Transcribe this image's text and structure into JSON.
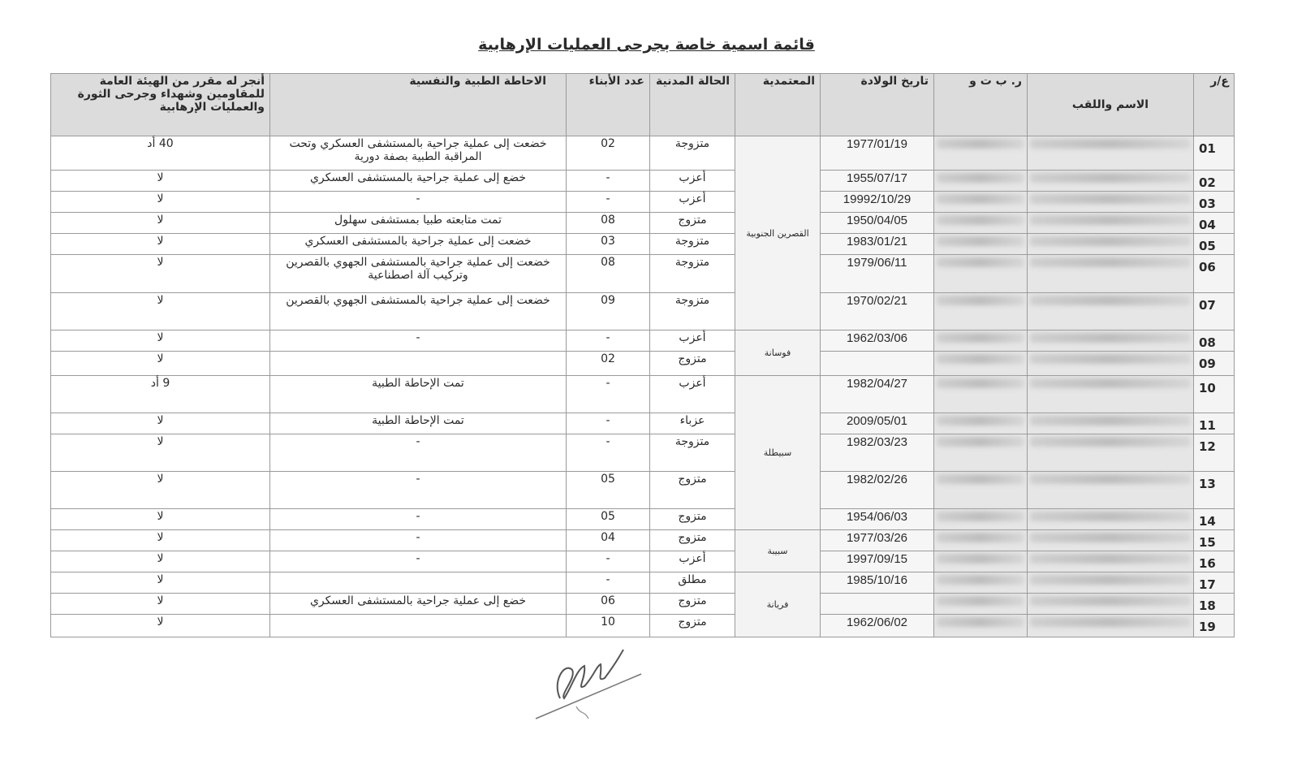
{
  "title": "قائمة اسمية خاصة بجرحى العمليات الإرهابية",
  "headers": {
    "num": "ع/ر",
    "name": "الاسم واللقب",
    "id": "ر. ب ت و",
    "dob": "تاريخ الولادة",
    "delegation": "المعتمدية",
    "civil": "الحالة المدنية",
    "children": "عدد الأبناء",
    "medical": "الاحاطة الطبية والنفسية",
    "grant": "أنجر له مقرر من الهيئة العامة للمقاومين وشهداء وجرحى الثورة والعمليات الإرهابية"
  },
  "delegations": [
    {
      "name": "القصرين الجنوبية",
      "rows": 7
    },
    {
      "name": "فوسانة",
      "rows": 2
    },
    {
      "name": "سبيطلة",
      "rows": 5
    },
    {
      "name": "سبيبة",
      "rows": 2
    },
    {
      "name": "فريانة",
      "rows": 3
    }
  ],
  "rows": [
    {
      "num": "01",
      "dob": "1977/01/19",
      "civil": "متزوجة",
      "children": "02",
      "medical": "خضعت إلى عملية جراحية بالمستشفى العسكري وتحت المراقبة الطبية بصفة دورية",
      "grant": "40 أد"
    },
    {
      "num": "02",
      "dob": "1955/07/17",
      "civil": "أعزب",
      "children": "-",
      "medical": "خضع إلى عملية جراحية بالمستشفى العسكري",
      "grant": "لا"
    },
    {
      "num": "03",
      "dob": "19992/10/29",
      "civil": "أعزب",
      "children": "-",
      "medical": "-",
      "grant": "لا"
    },
    {
      "num": "04",
      "dob": "1950/04/05",
      "civil": "متزوج",
      "children": "08",
      "medical": "تمت متابعته طبيا بمستشفى سهلول",
      "grant": "لا"
    },
    {
      "num": "05",
      "dob": "1983/01/21",
      "civil": "متزوجة",
      "children": "03",
      "medical": "خضعت إلى عملية جراحية بالمستشفى العسكري",
      "grant": "لا"
    },
    {
      "num": "06",
      "dob": "1979/06/11",
      "civil": "متزوجة",
      "children": "08",
      "medical": "خضعت إلى عملية جراحية بالمستشفى الجهوي بالقصرين وتركيب آلة اصطناعية",
      "grant": "لا"
    },
    {
      "num": "07",
      "dob": "1970/02/21",
      "civil": "متزوجة",
      "children": "09",
      "medical": "خضعت إلى عملية جراحية بالمستشفى الجهوي بالقصرين",
      "grant": "لا"
    },
    {
      "num": "08",
      "dob": "1962/03/06",
      "civil": "أعزب",
      "children": "-",
      "medical": "-",
      "grant": "لا"
    },
    {
      "num": "09",
      "dob": "",
      "civil": "متزوج",
      "children": "02",
      "medical": "",
      "grant": "لا"
    },
    {
      "num": "10",
      "dob": "1982/04/27",
      "civil": "أعزب",
      "children": "-",
      "medical": "تمت الإحاطة الطبية",
      "grant": "9 أد"
    },
    {
      "num": "11",
      "dob": "2009/05/01",
      "civil": "عزباء",
      "children": "-",
      "medical": "تمت الإحاطة الطبية",
      "grant": "لا"
    },
    {
      "num": "12",
      "dob": "1982/03/23",
      "civil": "متزوجة",
      "children": "-",
      "medical": "-",
      "grant": "لا"
    },
    {
      "num": "13",
      "dob": "1982/02/26",
      "civil": "متزوج",
      "children": "05",
      "medical": "-",
      "grant": "لا"
    },
    {
      "num": "14",
      "dob": "1954/06/03",
      "civil": "متزوج",
      "children": "05",
      "medical": "-",
      "grant": "لا"
    },
    {
      "num": "15",
      "dob": "1977/03/26",
      "civil": "متزوج",
      "children": "04",
      "medical": "-",
      "grant": "لا"
    },
    {
      "num": "16",
      "dob": "1997/09/15",
      "civil": "أعزب",
      "children": "-",
      "medical": "-",
      "grant": "لا"
    },
    {
      "num": "17",
      "dob": "1985/10/16",
      "civil": "مطلق",
      "children": "-",
      "medical": "",
      "grant": "لا"
    },
    {
      "num": "18",
      "dob": "",
      "civil": "متزوج",
      "children": "06",
      "medical": "خضع إلى عملية جراحية بالمستشفى العسكري",
      "grant": "لا"
    },
    {
      "num": "19",
      "dob": "1962/06/02",
      "civil": "متزوج",
      "children": "10",
      "medical": "",
      "grant": "لا"
    }
  ]
}
